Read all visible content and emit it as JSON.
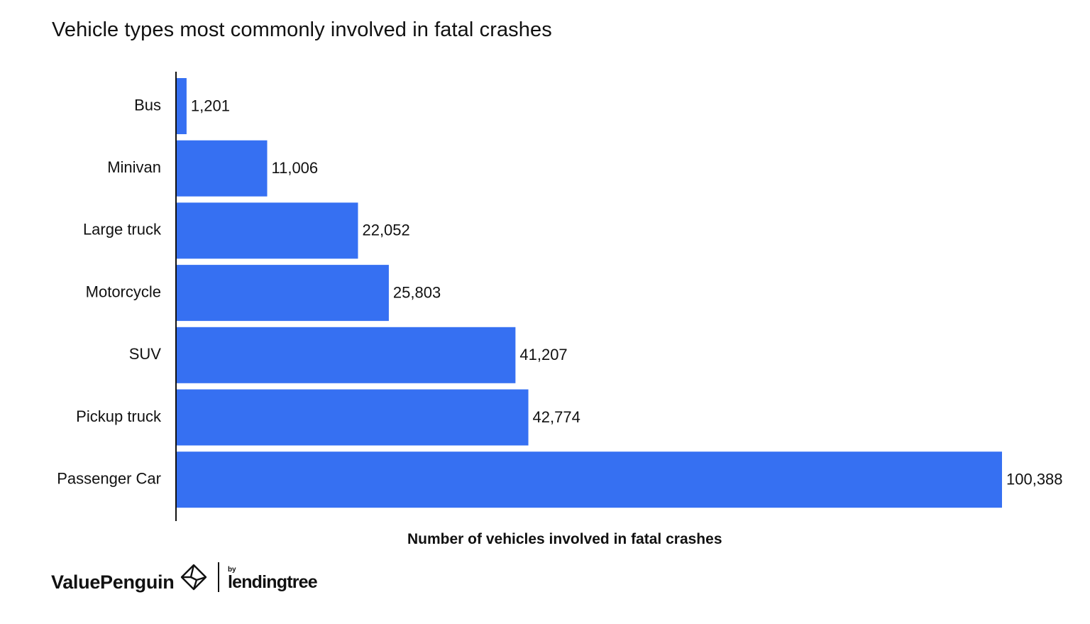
{
  "chart_data": {
    "type": "bar",
    "orientation": "horizontal",
    "title": "Vehicle types most commonly involved in fatal crashes",
    "xlabel": "Number of vehicles involved in fatal crashes",
    "ylabel": "",
    "categories": [
      "Bus",
      "Minivan",
      "Large truck",
      "Motorcycle",
      "SUV",
      "Pickup truck",
      "Passenger Car"
    ],
    "values": [
      1201,
      11006,
      22052,
      25803,
      41207,
      42774,
      100388
    ],
    "value_labels": [
      "1,201",
      "11,006",
      "22,052",
      "25,803",
      "41,207",
      "42,774",
      "100,388"
    ],
    "xlim": [
      0,
      100388
    ],
    "grid": false,
    "legend": "none",
    "bar_color": "#3670f2"
  },
  "brand": {
    "primary": "ValuePenguin",
    "by": "by",
    "secondary": "lendingtree",
    "logo_icon": "penguin-diamond-icon"
  }
}
